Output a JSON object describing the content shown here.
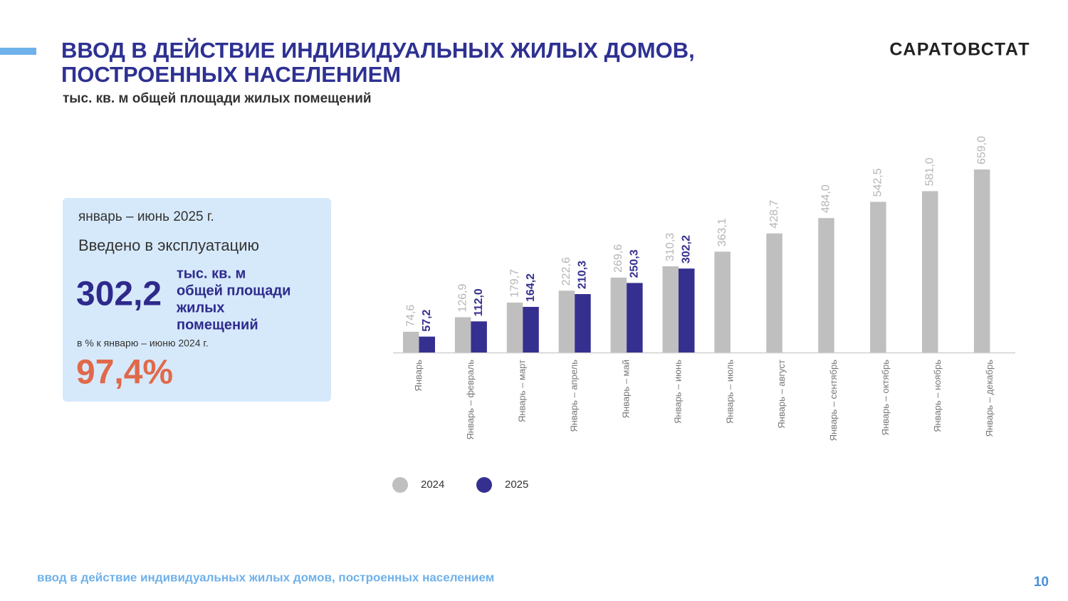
{
  "header": {
    "title_lines": [
      "ВВОД В ДЕЙСТВИЕ ИНДИВИДУАЛЬНЫХ ЖИЛЫХ ДОМОВ,",
      "ПОСТРОЕННЫХ НАСЕЛЕНИЕМ"
    ],
    "subtitle": "тыс. кв. м общей площади жилых помещений",
    "logo": "САРАТОВСТАТ"
  },
  "info_box": {
    "period": "январь – июнь 2025 г.",
    "label": "Введено в эксплуатацию",
    "value": "302,2",
    "unit_lines": [
      "тыс. кв. м",
      "общей площади",
      "жилых",
      "помещений"
    ],
    "comparison_label": "в % к январю – июню 2024 г.",
    "percent": "97,4%"
  },
  "chart_data": {
    "type": "bar",
    "categories": [
      "Январь",
      "Январь – февраль",
      "Январь – март",
      "Январь – апрель",
      "Январь – май",
      "Январь – июнь",
      "Январь – июль",
      "Январь – август",
      "Январь – сентябрь",
      "Январь – октябрь",
      "Январь – ноябрь",
      "Январь – декабрь"
    ],
    "series": [
      {
        "name": "2024",
        "color": "#bfbfbf",
        "values": [
          74.6,
          126.9,
          179.7,
          222.6,
          269.6,
          310.3,
          363.1,
          428.7,
          484.0,
          542.5,
          581.0,
          659.0
        ],
        "value_labels": [
          "74,6",
          "126,9",
          "179,7",
          "222,6",
          "269,6",
          "310,3",
          "363,1",
          "428,7",
          "484,0",
          "542,5",
          "581,0",
          "659,0"
        ]
      },
      {
        "name": "2025",
        "color": "#35308f",
        "values": [
          57.2,
          112.0,
          164.2,
          210.3,
          250.3,
          302.2,
          null,
          null,
          null,
          null,
          null,
          null
        ],
        "value_labels": [
          "57,2",
          "112,0",
          "164,2",
          "210,3",
          "250,3",
          "302,2",
          null,
          null,
          null,
          null,
          null,
          null
        ]
      }
    ]
  },
  "footer": {
    "text": "ввод в действие индивидуальных жилых домов, построенных населением",
    "page": "10"
  }
}
